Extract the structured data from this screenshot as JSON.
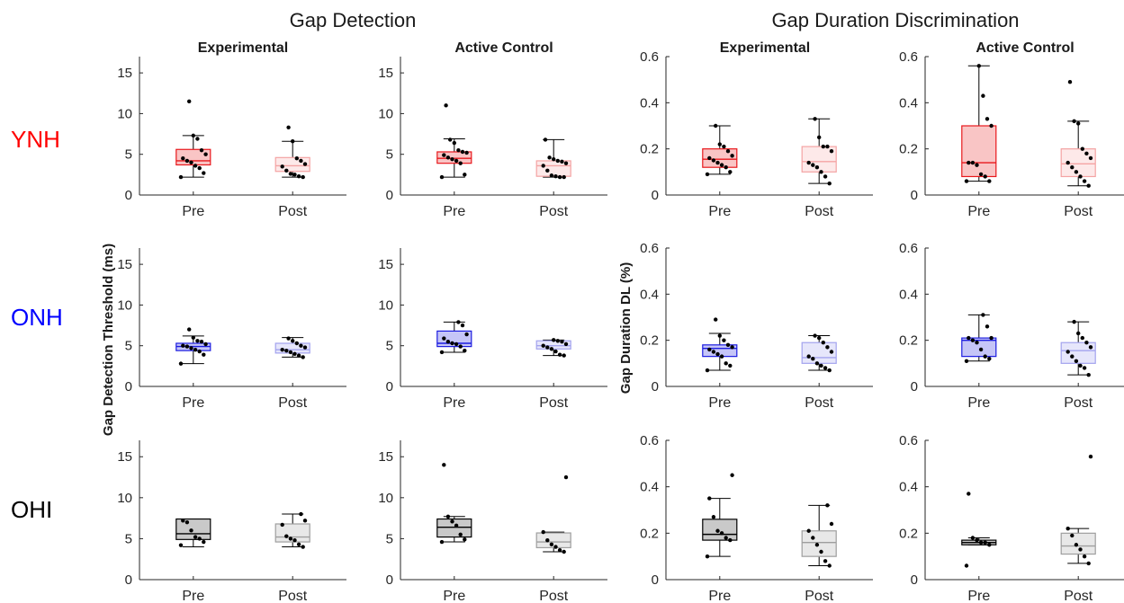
{
  "figure": {
    "section_titles": [
      "Gap Detection",
      "Gap Duration Discrimination"
    ],
    "column_titles": [
      "Experimental",
      "Active Control",
      "Experimental",
      "Active Control"
    ],
    "row_labels": [
      {
        "text": "YNH",
        "color": "#ff0000"
      },
      {
        "text": "ONH",
        "color": "#0000ff"
      },
      {
        "text": "OHI",
        "color": "#000000"
      }
    ],
    "ylabels": [
      "Gap Detection Threshold (ms)",
      "Gap Duration DL (%)"
    ],
    "colors": {
      "YNH": {
        "pre_fill": "#f9c5c5",
        "pre_line": "#e8181c",
        "post_fill": "#fde9e9",
        "post_line": "#f4a3a3"
      },
      "ONH": {
        "pre_fill": "#c5c5f7",
        "pre_line": "#1c1ce0",
        "post_fill": "#e6e6fb",
        "post_line": "#a3a3ee"
      },
      "OHI": {
        "pre_fill": "#c9c9c9",
        "pre_line": "#000000",
        "post_fill": "#e8e8e8",
        "post_line": "#9e9e9e"
      }
    }
  },
  "chart_data": [
    {
      "type": "box",
      "row": "YNH",
      "column": "Experimental",
      "measure": "gap_detection",
      "categories": [
        "Pre",
        "Post"
      ],
      "ylim": [
        0,
        17
      ],
      "yticks": [
        0,
        5,
        10,
        15
      ],
      "boxes": [
        {
          "q1": 3.7,
          "median": 4.2,
          "q3": 5.6,
          "whisker_low": 2.2,
          "whisker_high": 7.3,
          "points": [
            2.2,
            2.7,
            3.3,
            3.6,
            4.0,
            4.2,
            4.5,
            5.0,
            5.5,
            6.9,
            7.3,
            11.5
          ]
        },
        {
          "q1": 2.9,
          "median": 3.6,
          "q3": 4.6,
          "whisker_low": 2.2,
          "whisker_high": 6.6,
          "points": [
            2.2,
            2.3,
            2.5,
            2.6,
            3.0,
            3.5,
            3.8,
            4.2,
            4.5,
            6.6,
            8.3
          ]
        }
      ]
    },
    {
      "type": "box",
      "row": "YNH",
      "column": "Active Control",
      "measure": "gap_detection",
      "categories": [
        "Pre",
        "Post"
      ],
      "ylim": [
        0,
        17
      ],
      "yticks": [
        0,
        5,
        10,
        15
      ],
      "boxes": [
        {
          "q1": 3.9,
          "median": 4.5,
          "q3": 5.3,
          "whisker_low": 2.2,
          "whisker_high": 6.9,
          "points": [
            2.2,
            2.5,
            3.9,
            4.2,
            4.4,
            4.6,
            4.9,
            5.2,
            5.3,
            5.5,
            6.4,
            6.8,
            11.0
          ]
        },
        {
          "q1": 2.3,
          "median": 3.6,
          "q3": 4.2,
          "whisker_low": 2.2,
          "whisker_high": 6.8,
          "points": [
            2.2,
            2.2,
            2.3,
            2.4,
            3.0,
            3.6,
            3.9,
            4.1,
            4.2,
            4.4,
            4.6,
            6.8
          ]
        }
      ]
    },
    {
      "type": "box",
      "row": "YNH",
      "column": "Experimental",
      "measure": "gap_duration_dl",
      "categories": [
        "Pre",
        "Post"
      ],
      "ylim": [
        0,
        0.6
      ],
      "yticks": [
        0,
        0.2,
        0.4,
        0.6
      ],
      "boxes": [
        {
          "q1": 0.12,
          "median": 0.155,
          "q3": 0.2,
          "whisker_low": 0.09,
          "whisker_high": 0.3,
          "points": [
            0.09,
            0.1,
            0.12,
            0.13,
            0.14,
            0.15,
            0.16,
            0.17,
            0.19,
            0.21,
            0.22,
            0.3
          ]
        },
        {
          "q1": 0.1,
          "median": 0.145,
          "q3": 0.21,
          "whisker_low": 0.05,
          "whisker_high": 0.33,
          "points": [
            0.05,
            0.08,
            0.1,
            0.12,
            0.13,
            0.14,
            0.19,
            0.21,
            0.21,
            0.25,
            0.33
          ]
        }
      ]
    },
    {
      "type": "box",
      "row": "YNH",
      "column": "Active Control",
      "measure": "gap_duration_dl",
      "categories": [
        "Pre",
        "Post"
      ],
      "ylim": [
        0,
        0.6
      ],
      "yticks": [
        0,
        0.2,
        0.4,
        0.6
      ],
      "boxes": [
        {
          "q1": 0.08,
          "median": 0.14,
          "q3": 0.3,
          "whisker_low": 0.06,
          "whisker_high": 0.56,
          "points": [
            0.06,
            0.06,
            0.08,
            0.09,
            0.13,
            0.14,
            0.14,
            0.3,
            0.33,
            0.43,
            0.56
          ]
        },
        {
          "q1": 0.08,
          "median": 0.135,
          "q3": 0.2,
          "whisker_low": 0.04,
          "whisker_high": 0.32,
          "points": [
            0.04,
            0.06,
            0.08,
            0.1,
            0.12,
            0.14,
            0.16,
            0.18,
            0.2,
            0.31,
            0.32,
            0.49
          ]
        }
      ]
    },
    {
      "type": "box",
      "row": "ONH",
      "column": "Experimental",
      "measure": "gap_detection",
      "categories": [
        "Pre",
        "Post"
      ],
      "ylim": [
        0,
        17
      ],
      "yticks": [
        0,
        5,
        10,
        15
      ],
      "boxes": [
        {
          "q1": 4.4,
          "median": 4.9,
          "q3": 5.3,
          "whisker_low": 2.8,
          "whisker_high": 6.2,
          "points": [
            2.8,
            3.9,
            4.3,
            4.5,
            4.7,
            4.9,
            5.0,
            5.2,
            5.5,
            5.6,
            6.0,
            7.0
          ]
        },
        {
          "q1": 4.1,
          "median": 4.5,
          "q3": 5.3,
          "whisker_low": 3.6,
          "whisker_high": 6.0,
          "points": [
            3.6,
            3.8,
            4.0,
            4.2,
            4.4,
            4.5,
            4.8,
            5.0,
            5.3,
            5.6,
            5.9
          ]
        }
      ]
    },
    {
      "type": "box",
      "row": "ONH",
      "column": "Active Control",
      "measure": "gap_detection",
      "categories": [
        "Pre",
        "Post"
      ],
      "ylim": [
        0,
        17
      ],
      "yticks": [
        0,
        5,
        10,
        15
      ],
      "boxes": [
        {
          "q1": 4.9,
          "median": 5.3,
          "q3": 6.8,
          "whisker_low": 4.2,
          "whisker_high": 7.9,
          "points": [
            4.2,
            4.4,
            4.9,
            5.2,
            5.3,
            5.5,
            5.9,
            6.4,
            7.5,
            7.9
          ]
        },
        {
          "q1": 4.6,
          "median": 5.0,
          "q3": 5.6,
          "whisker_low": 3.8,
          "whisker_high": 5.7,
          "points": [
            3.8,
            3.9,
            4.3,
            4.6,
            4.8,
            5.0,
            5.2,
            5.5,
            5.6,
            5.7
          ]
        }
      ]
    },
    {
      "type": "box",
      "row": "ONH",
      "column": "Experimental",
      "measure": "gap_duration_dl",
      "categories": [
        "Pre",
        "Post"
      ],
      "ylim": [
        0,
        0.6
      ],
      "yticks": [
        0,
        0.2,
        0.4,
        0.6
      ],
      "boxes": [
        {
          "q1": 0.13,
          "median": 0.165,
          "q3": 0.18,
          "whisker_low": 0.07,
          "whisker_high": 0.23,
          "points": [
            0.07,
            0.09,
            0.1,
            0.13,
            0.14,
            0.15,
            0.16,
            0.17,
            0.18,
            0.2,
            0.22,
            0.29
          ]
        },
        {
          "q1": 0.1,
          "median": 0.125,
          "q3": 0.19,
          "whisker_low": 0.07,
          "whisker_high": 0.22,
          "points": [
            0.07,
            0.08,
            0.09,
            0.1,
            0.12,
            0.13,
            0.15,
            0.17,
            0.19,
            0.21,
            0.22
          ]
        }
      ]
    },
    {
      "type": "box",
      "row": "ONH",
      "column": "Active Control",
      "measure": "gap_duration_dl",
      "categories": [
        "Pre",
        "Post"
      ],
      "ylim": [
        0,
        0.6
      ],
      "yticks": [
        0,
        0.2,
        0.4,
        0.6
      ],
      "boxes": [
        {
          "q1": 0.13,
          "median": 0.2,
          "q3": 0.21,
          "whisker_low": 0.11,
          "whisker_high": 0.31,
          "points": [
            0.11,
            0.12,
            0.13,
            0.16,
            0.19,
            0.2,
            0.21,
            0.21,
            0.26,
            0.31
          ]
        },
        {
          "q1": 0.1,
          "median": 0.155,
          "q3": 0.19,
          "whisker_low": 0.05,
          "whisker_high": 0.28,
          "points": [
            0.05,
            0.08,
            0.09,
            0.11,
            0.13,
            0.15,
            0.17,
            0.19,
            0.21,
            0.23,
            0.28
          ]
        }
      ]
    },
    {
      "type": "box",
      "row": "OHI",
      "column": "Experimental",
      "measure": "gap_detection",
      "categories": [
        "Pre",
        "Post"
      ],
      "ylim": [
        0,
        17
      ],
      "yticks": [
        0,
        5,
        10,
        15
      ],
      "boxes": [
        {
          "q1": 4.9,
          "median": 5.6,
          "q3": 7.4,
          "whisker_low": 4.0,
          "whisker_high": 7.4,
          "points": [
            4.2,
            4.6,
            5.0,
            5.2,
            6.0,
            7.0,
            7.2
          ]
        },
        {
          "q1": 4.6,
          "median": 5.2,
          "q3": 6.8,
          "whisker_low": 4.0,
          "whisker_high": 8.0,
          "points": [
            4.0,
            4.3,
            4.8,
            5.0,
            5.3,
            6.7,
            7.2,
            8.0
          ]
        }
      ]
    },
    {
      "type": "box",
      "row": "OHI",
      "column": "Active Control",
      "measure": "gap_detection",
      "categories": [
        "Pre",
        "Post"
      ],
      "ylim": [
        0,
        17
      ],
      "yticks": [
        0,
        5,
        10,
        15
      ],
      "boxes": [
        {
          "q1": 5.2,
          "median": 6.4,
          "q3": 7.4,
          "whisker_low": 4.6,
          "whisker_high": 7.7,
          "points": [
            4.6,
            4.9,
            5.5,
            6.6,
            7.1,
            7.7,
            14.0
          ]
        },
        {
          "q1": 3.9,
          "median": 4.6,
          "q3": 5.7,
          "whisker_low": 3.4,
          "whisker_high": 5.8,
          "points": [
            3.4,
            3.6,
            4.0,
            4.3,
            4.8,
            5.8,
            12.5
          ]
        }
      ]
    },
    {
      "type": "box",
      "row": "OHI",
      "column": "Experimental",
      "measure": "gap_duration_dl",
      "categories": [
        "Pre",
        "Post"
      ],
      "ylim": [
        0,
        0.6
      ],
      "yticks": [
        0,
        0.2,
        0.4,
        0.6
      ],
      "boxes": [
        {
          "q1": 0.17,
          "median": 0.195,
          "q3": 0.26,
          "whisker_low": 0.1,
          "whisker_high": 0.35,
          "points": [
            0.1,
            0.17,
            0.18,
            0.2,
            0.21,
            0.27,
            0.35,
            0.45
          ]
        },
        {
          "q1": 0.1,
          "median": 0.16,
          "q3": 0.21,
          "whisker_low": 0.06,
          "whisker_high": 0.32,
          "points": [
            0.06,
            0.08,
            0.12,
            0.15,
            0.18,
            0.21,
            0.24,
            0.32
          ]
        }
      ]
    },
    {
      "type": "box",
      "row": "OHI",
      "column": "Active Control",
      "measure": "gap_duration_dl",
      "categories": [
        "Pre",
        "Post"
      ],
      "ylim": [
        0,
        0.6
      ],
      "yticks": [
        0,
        0.2,
        0.4,
        0.6
      ],
      "boxes": [
        {
          "q1": 0.15,
          "median": 0.16,
          "q3": 0.17,
          "whisker_low": 0.15,
          "whisker_high": 0.18,
          "points": [
            0.06,
            0.15,
            0.16,
            0.16,
            0.17,
            0.18,
            0.37
          ]
        },
        {
          "q1": 0.11,
          "median": 0.145,
          "q3": 0.2,
          "whisker_low": 0.07,
          "whisker_high": 0.22,
          "points": [
            0.07,
            0.1,
            0.13,
            0.15,
            0.19,
            0.22,
            0.53
          ]
        }
      ]
    }
  ]
}
